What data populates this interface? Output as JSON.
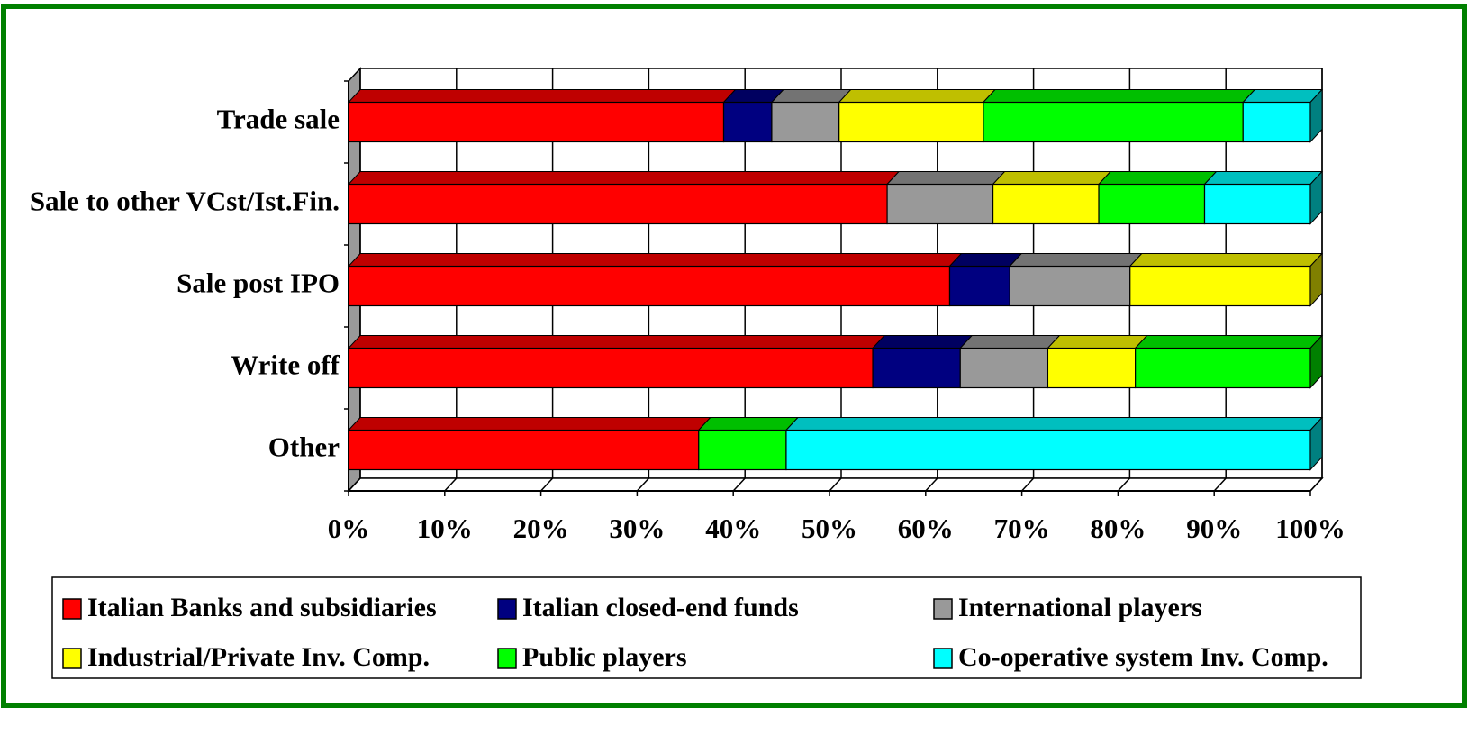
{
  "chart_data": {
    "type": "stacked_bar_3d_horizontal",
    "categories": [
      "Trade sale",
      "Sale to other VCst/Ist.Fin.",
      "Sale post IPO",
      "Write off",
      "Other"
    ],
    "series": [
      {
        "name": "Italian Banks and subsidiaries",
        "color": "#ff0000",
        "values": [
          39,
          56,
          62.5,
          54.5,
          36.4
        ]
      },
      {
        "name": "Italian closed-end funds",
        "color": "#000080",
        "values": [
          5,
          0,
          6.25,
          9.1,
          0
        ]
      },
      {
        "name": "International players",
        "color": "#999999",
        "values": [
          7,
          11,
          12.5,
          9.1,
          0
        ]
      },
      {
        "name": "Industrial/Private Inv. Comp.",
        "color": "#ffff00",
        "values": [
          15,
          11,
          18.75,
          9.1,
          0
        ]
      },
      {
        "name": "Public players",
        "color": "#00ff00",
        "values": [
          27,
          11,
          0,
          18.2,
          9.1
        ]
      },
      {
        "name": "Co-operative system Inv. Comp.",
        "color": "#00ffff",
        "values": [
          7,
          11,
          0,
          0,
          54.5
        ]
      }
    ],
    "xlim": [
      0,
      100
    ],
    "xticks": [
      {
        "value": 0,
        "label": "0%"
      },
      {
        "value": 10,
        "label": "10%"
      },
      {
        "value": 20,
        "label": "20%"
      },
      {
        "value": 30,
        "label": "30%"
      },
      {
        "value": 40,
        "label": "40%"
      },
      {
        "value": 50,
        "label": "50%"
      },
      {
        "value": 60,
        "label": "60%"
      },
      {
        "value": 70,
        "label": "70%"
      },
      {
        "value": 80,
        "label": "80%"
      },
      {
        "value": 90,
        "label": "90%"
      },
      {
        "value": 100,
        "label": "100%"
      }
    ],
    "grid": true
  }
}
